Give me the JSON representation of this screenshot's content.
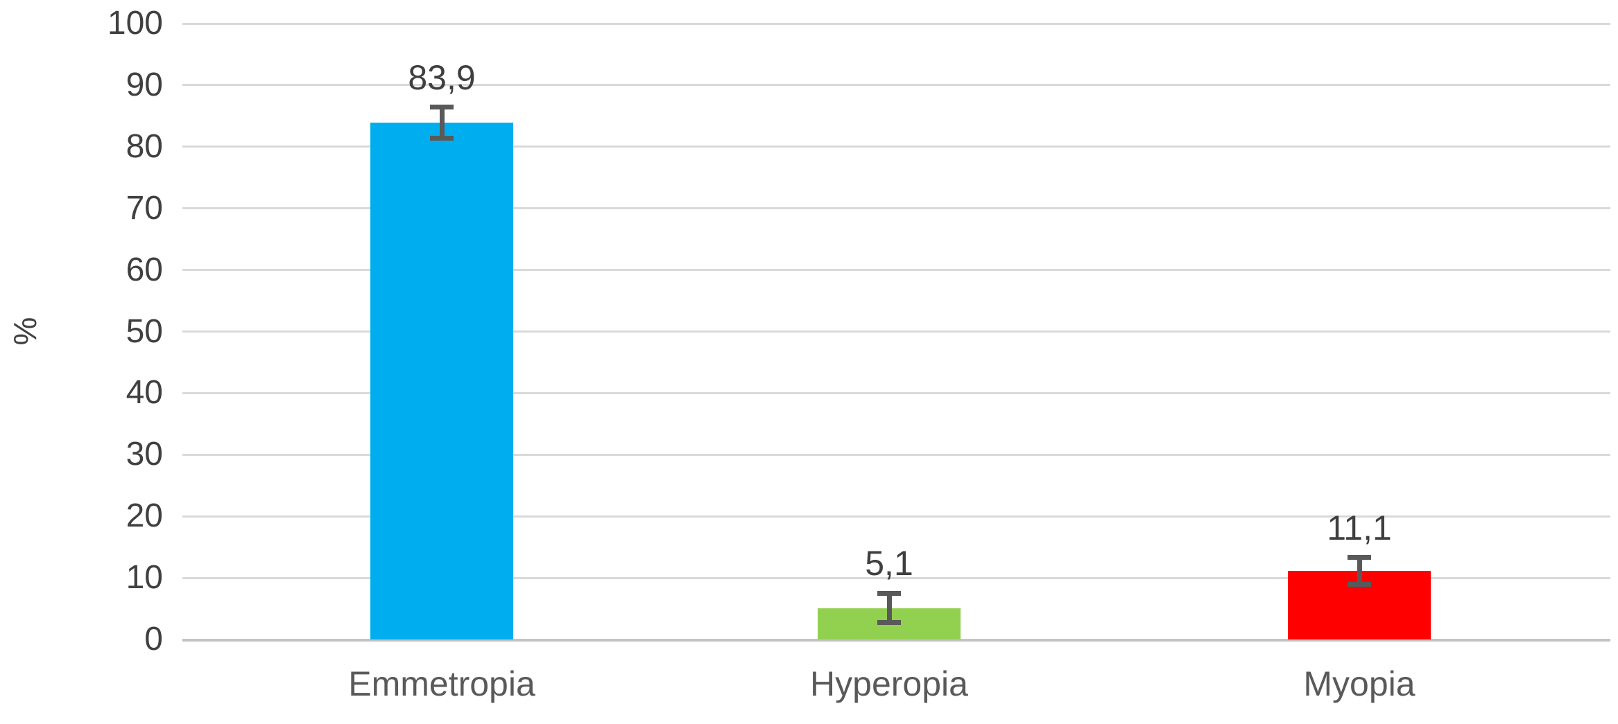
{
  "chart_data": {
    "type": "bar",
    "title": "",
    "categories": [
      "Emmetropia",
      "Hyperopia",
      "Myopia"
    ],
    "values": [
      83.9,
      5.1,
      11.1
    ],
    "value_labels": [
      "83,9",
      "5,1",
      "11,1"
    ],
    "errors": [
      2.5,
      2.4,
      2.2
    ],
    "bar_colors": [
      "#00AEEF",
      "#92D050",
      "#FF0000"
    ],
    "xlabel": "",
    "ylabel": "%",
    "ylim": [
      0,
      100
    ],
    "ytick_step": 10,
    "yticks": [
      0,
      10,
      20,
      30,
      40,
      50,
      60,
      70,
      80,
      90,
      100
    ],
    "ytick_labels": [
      "0",
      "10",
      "20",
      "30",
      "40",
      "50",
      "60",
      "70",
      "80",
      "90",
      "100"
    ],
    "grid": "horizontal",
    "legend": "none",
    "decimal_separator": ","
  },
  "colors": {
    "background": "#FFFFFF",
    "gridline": "#D9D9D9",
    "baseline": "#C3C3C3",
    "error_bar": "#595959",
    "tick_text": "#404040",
    "category_text": "#595959",
    "data_label_text": "#3F3F3F",
    "axis_title_text": "#404040"
  }
}
